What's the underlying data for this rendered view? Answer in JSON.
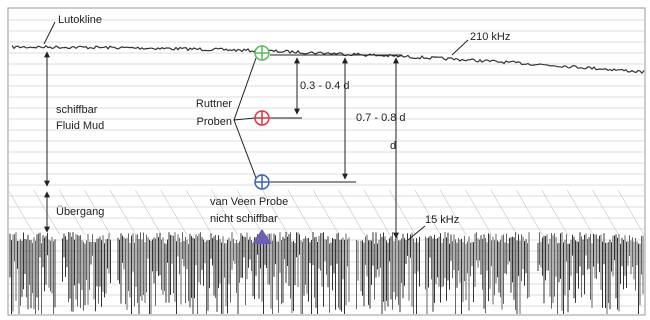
{
  "labels": {
    "lutokline": "Lutokline",
    "freq_high": "210 kHz",
    "fluid_mud": [
      "schiffbar",
      "Fluid Mud"
    ],
    "ruttner": [
      "Ruttner",
      "Proben"
    ],
    "depth_upper": "0.3 - 0.4 d",
    "depth_lower": "0.7 - 0.8 d",
    "depth_total": "d",
    "transition": "Übergang",
    "van_veen": [
      "van Veen Probe",
      "nicht schiffbar"
    ],
    "freq_low": "15 kHz"
  }
}
